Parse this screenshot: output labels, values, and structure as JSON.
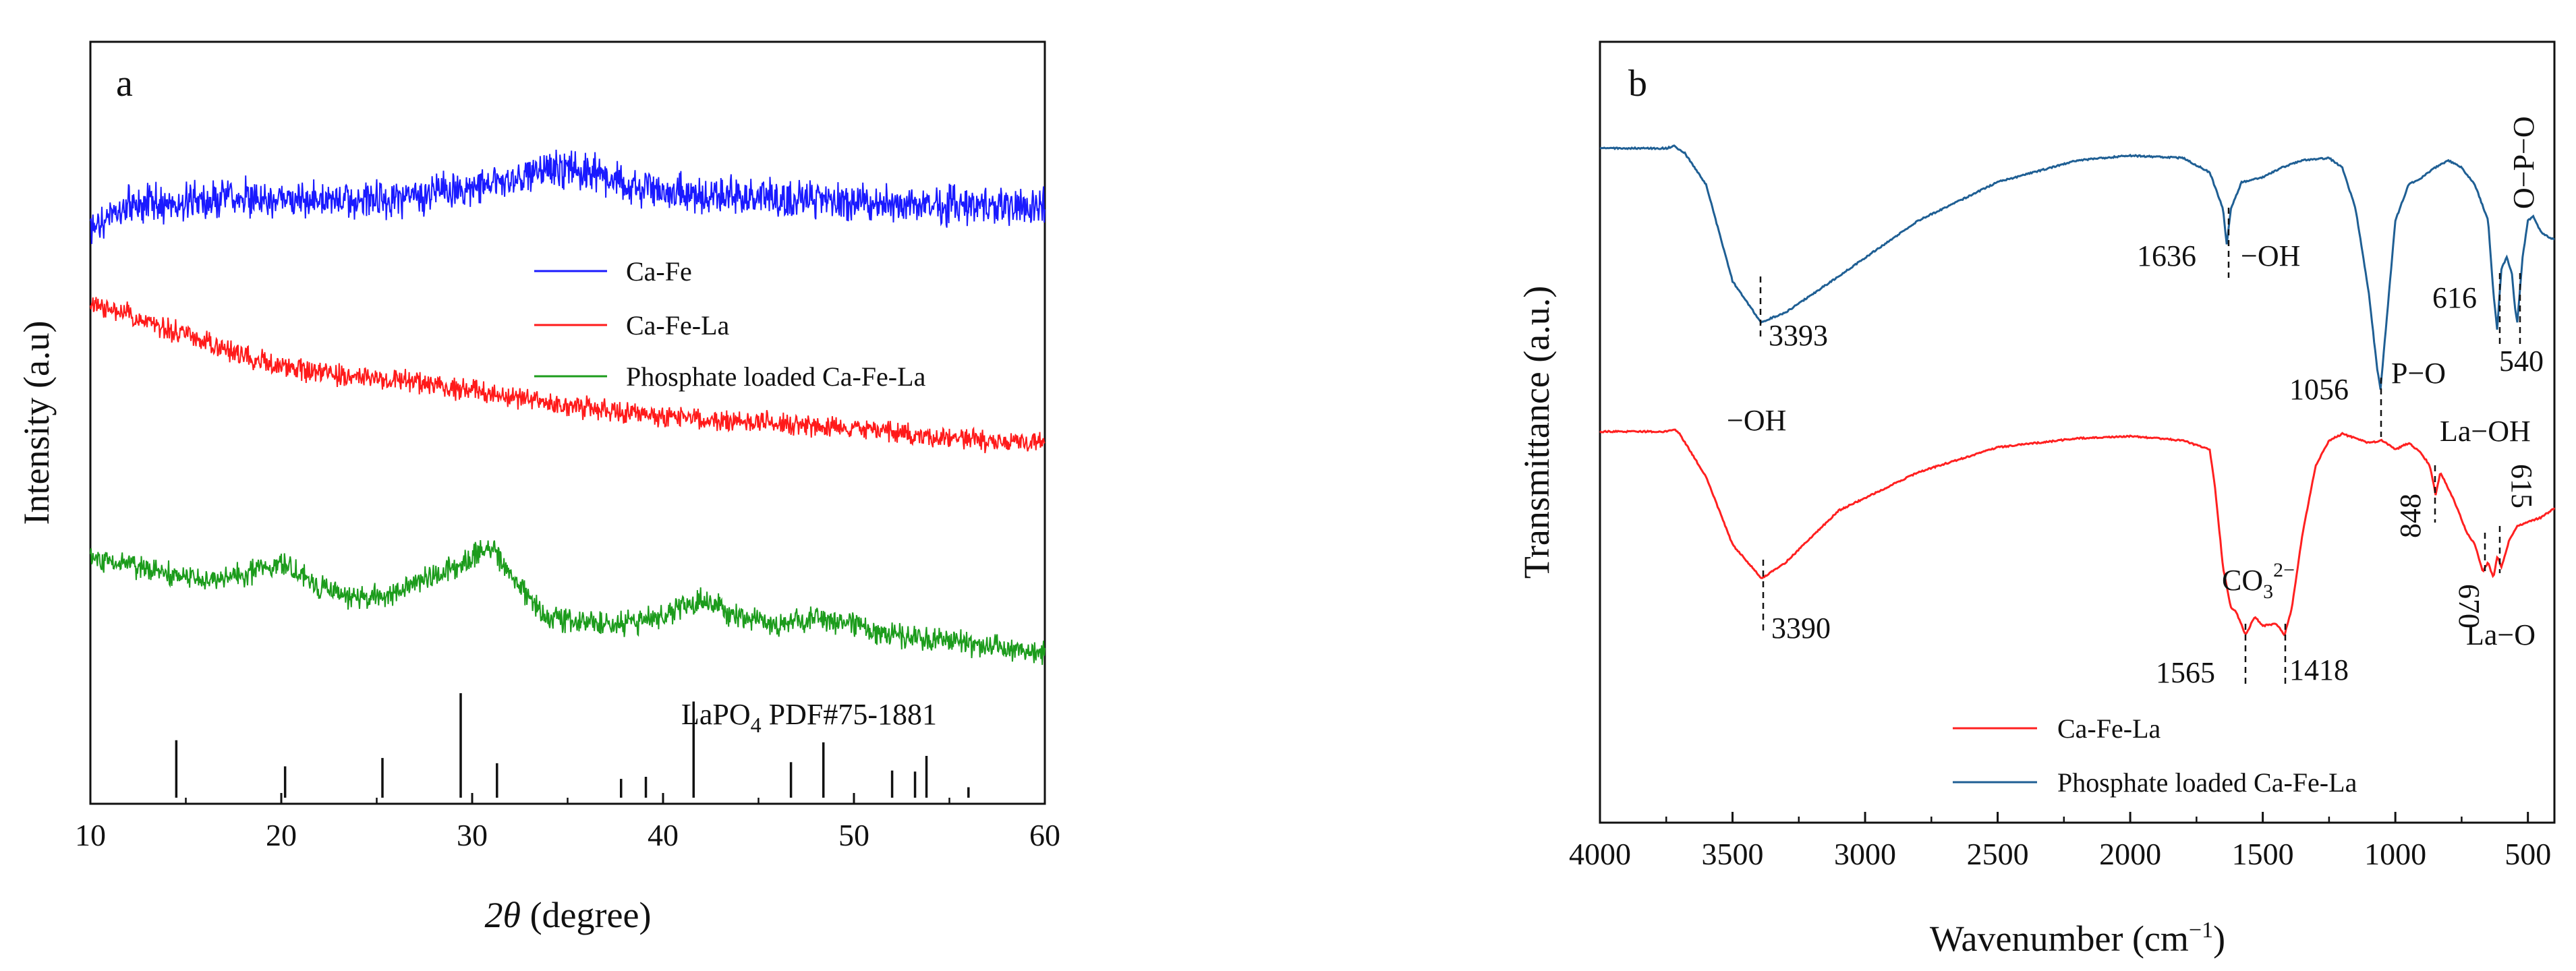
{
  "colors": {
    "ca_fe": "#1a1aff",
    "ca_fe_la": "#ff1a1a",
    "phosphate": "#1c9c1c",
    "ftir_phosphate": "#1f5f94",
    "ftir_cafela": "#ff2020",
    "reference": "#111111"
  },
  "chart_data": [
    {
      "type": "line",
      "panel_label": "a",
      "xlabel_math": "2θ",
      "xlabel_rest": " (degree)",
      "ylabel": "Intensity (a.u)",
      "xlim": [
        10,
        60
      ],
      "xticks": [
        10,
        20,
        30,
        40,
        50,
        60
      ],
      "yticks_shown": false,
      "legend_position": "center-right",
      "series": [
        {
          "name": "Ca-Fe",
          "color": "#1a1aff",
          "x": [
            10,
            12,
            15,
            18,
            20,
            24,
            27,
            30,
            33,
            35,
            36,
            38,
            40,
            45,
            50,
            55,
            60
          ],
          "y": [
            -3,
            0,
            0.5,
            1,
            1,
            0.5,
            1,
            2,
            3.5,
            4.5,
            4,
            2.5,
            1.5,
            1,
            0.5,
            0,
            0
          ]
        },
        {
          "name": "Ca-Fe-La",
          "color": "#ff1a1a",
          "x": [
            10,
            12,
            15,
            20,
            25,
            30,
            35,
            40,
            45,
            50,
            55,
            60
          ],
          "y": [
            13,
            12,
            10,
            7,
            6,
            5,
            3.5,
            2.5,
            2,
            1.5,
            0.5,
            0
          ]
        },
        {
          "name": "Phosphate loaded Ca-Fe-La",
          "color": "#1c9c1c",
          "x": [
            10,
            13,
            16,
            18,
            20,
            22,
            24,
            26,
            28,
            29,
            31,
            32,
            34,
            36,
            38,
            40,
            42,
            44,
            46,
            48,
            50,
            52,
            55,
            60
          ],
          "y": [
            8,
            7,
            6,
            6.5,
            7.5,
            5.5,
            4.5,
            5,
            6.5,
            7,
            9,
            6.5,
            3,
            2.5,
            2.5,
            3,
            4.5,
            3,
            2.5,
            3,
            2.5,
            1.5,
            1,
            0
          ]
        }
      ],
      "reference": {
        "label_main": "LaPO",
        "label_sub": "4",
        "label_rest": " PDF#75-1881",
        "positions": [
          14.5,
          20.2,
          25.3,
          29.4,
          31.3,
          37.8,
          39.1,
          41.6,
          46.7,
          48.4,
          52.0,
          53.2,
          53.8,
          56.0
        ],
        "intensities": [
          55,
          30,
          38,
          100,
          33,
          18,
          20,
          92,
          34,
          53,
          26,
          25,
          40,
          10
        ]
      }
    },
    {
      "type": "line",
      "panel_label": "b",
      "xlabel_main": "Wavenumber (cm",
      "xlabel_sup": "−1",
      "xlabel_end": ")",
      "ylabel": "Transmittance (a.u.)",
      "xlim": [
        4000,
        400
      ],
      "xticks": [
        4000,
        3500,
        3000,
        2500,
        2000,
        1500,
        1000,
        500
      ],
      "yticks_shown": false,
      "legend_position": "bottom-right",
      "series": [
        {
          "name": "Phosphate loaded Ca-Fe-La",
          "color": "#1f5f94",
          "x": [
            4000,
            3750,
            3720,
            3680,
            3600,
            3500,
            3393,
            3300,
            3100,
            2800,
            2500,
            2200,
            2000,
            1800,
            1700,
            1650,
            1636,
            1620,
            1580,
            1500,
            1430,
            1350,
            1250,
            1200,
            1150,
            1100,
            1070,
            1056,
            1040,
            1000,
            950,
            900,
            850,
            800,
            750,
            700,
            650,
            630,
            616,
            600,
            580,
            560,
            550,
            540,
            520,
            500,
            480,
            450,
            400
          ],
          "y": [
            100,
            100,
            101,
            98,
            85,
            45,
            28,
            32,
            47,
            70,
            86,
            95,
            97,
            96,
            90,
            75,
            60,
            75,
            86,
            88,
            92,
            95,
            96,
            92,
            75,
            40,
            10,
            0,
            20,
            70,
            85,
            88,
            92,
            95,
            92,
            85,
            70,
            40,
            25,
            50,
            55,
            48,
            35,
            28,
            55,
            70,
            72,
            65,
            62
          ]
        },
        {
          "name": "Ca-Fe-La",
          "color": "#ff2020",
          "x": [
            4000,
            3750,
            3720,
            3700,
            3600,
            3500,
            3390,
            3300,
            3100,
            2800,
            2500,
            2200,
            2000,
            1800,
            1700,
            1680,
            1650,
            1620,
            1600,
            1565,
            1530,
            1500,
            1450,
            1418,
            1390,
            1350,
            1300,
            1250,
            1200,
            1100,
            1050,
            1000,
            948,
            900,
            870,
            848,
            830,
            780,
            730,
            700,
            670,
            650,
            630,
            615,
            600,
            570,
            540,
            500,
            450,
            400
          ],
          "y": [
            100,
            100,
            101,
            99,
            80,
            50,
            35,
            42,
            65,
            82,
            93,
            97,
            98,
            96,
            92,
            75,
            40,
            22,
            20,
            10,
            18,
            14,
            15,
            10,
            22,
            55,
            85,
            96,
            99,
            95,
            96,
            92,
            95,
            90,
            85,
            72,
            82,
            70,
            55,
            50,
            38,
            42,
            35,
            45,
            40,
            52,
            58,
            60,
            62,
            66
          ]
        }
      ],
      "annotations": {
        "oh_left": "−OH",
        "ca_fe_la_3390": "3390",
        "phosphate_3393": "3393",
        "p_1636": "1636",
        "oh_right": "−OH",
        "p_1056": "1056",
        "po": "P−O",
        "p_616": "616",
        "p_540": "540",
        "opo": "O−P−O",
        "co3_main": "CO",
        "co3_sub": "3",
        "co3_sup": "2−",
        "p_1565": "1565",
        "p_1418": "1418",
        "laoh": "La−OH",
        "p_848": "848",
        "p_670": "670",
        "p_615": "615",
        "lao": "La−O"
      }
    }
  ]
}
